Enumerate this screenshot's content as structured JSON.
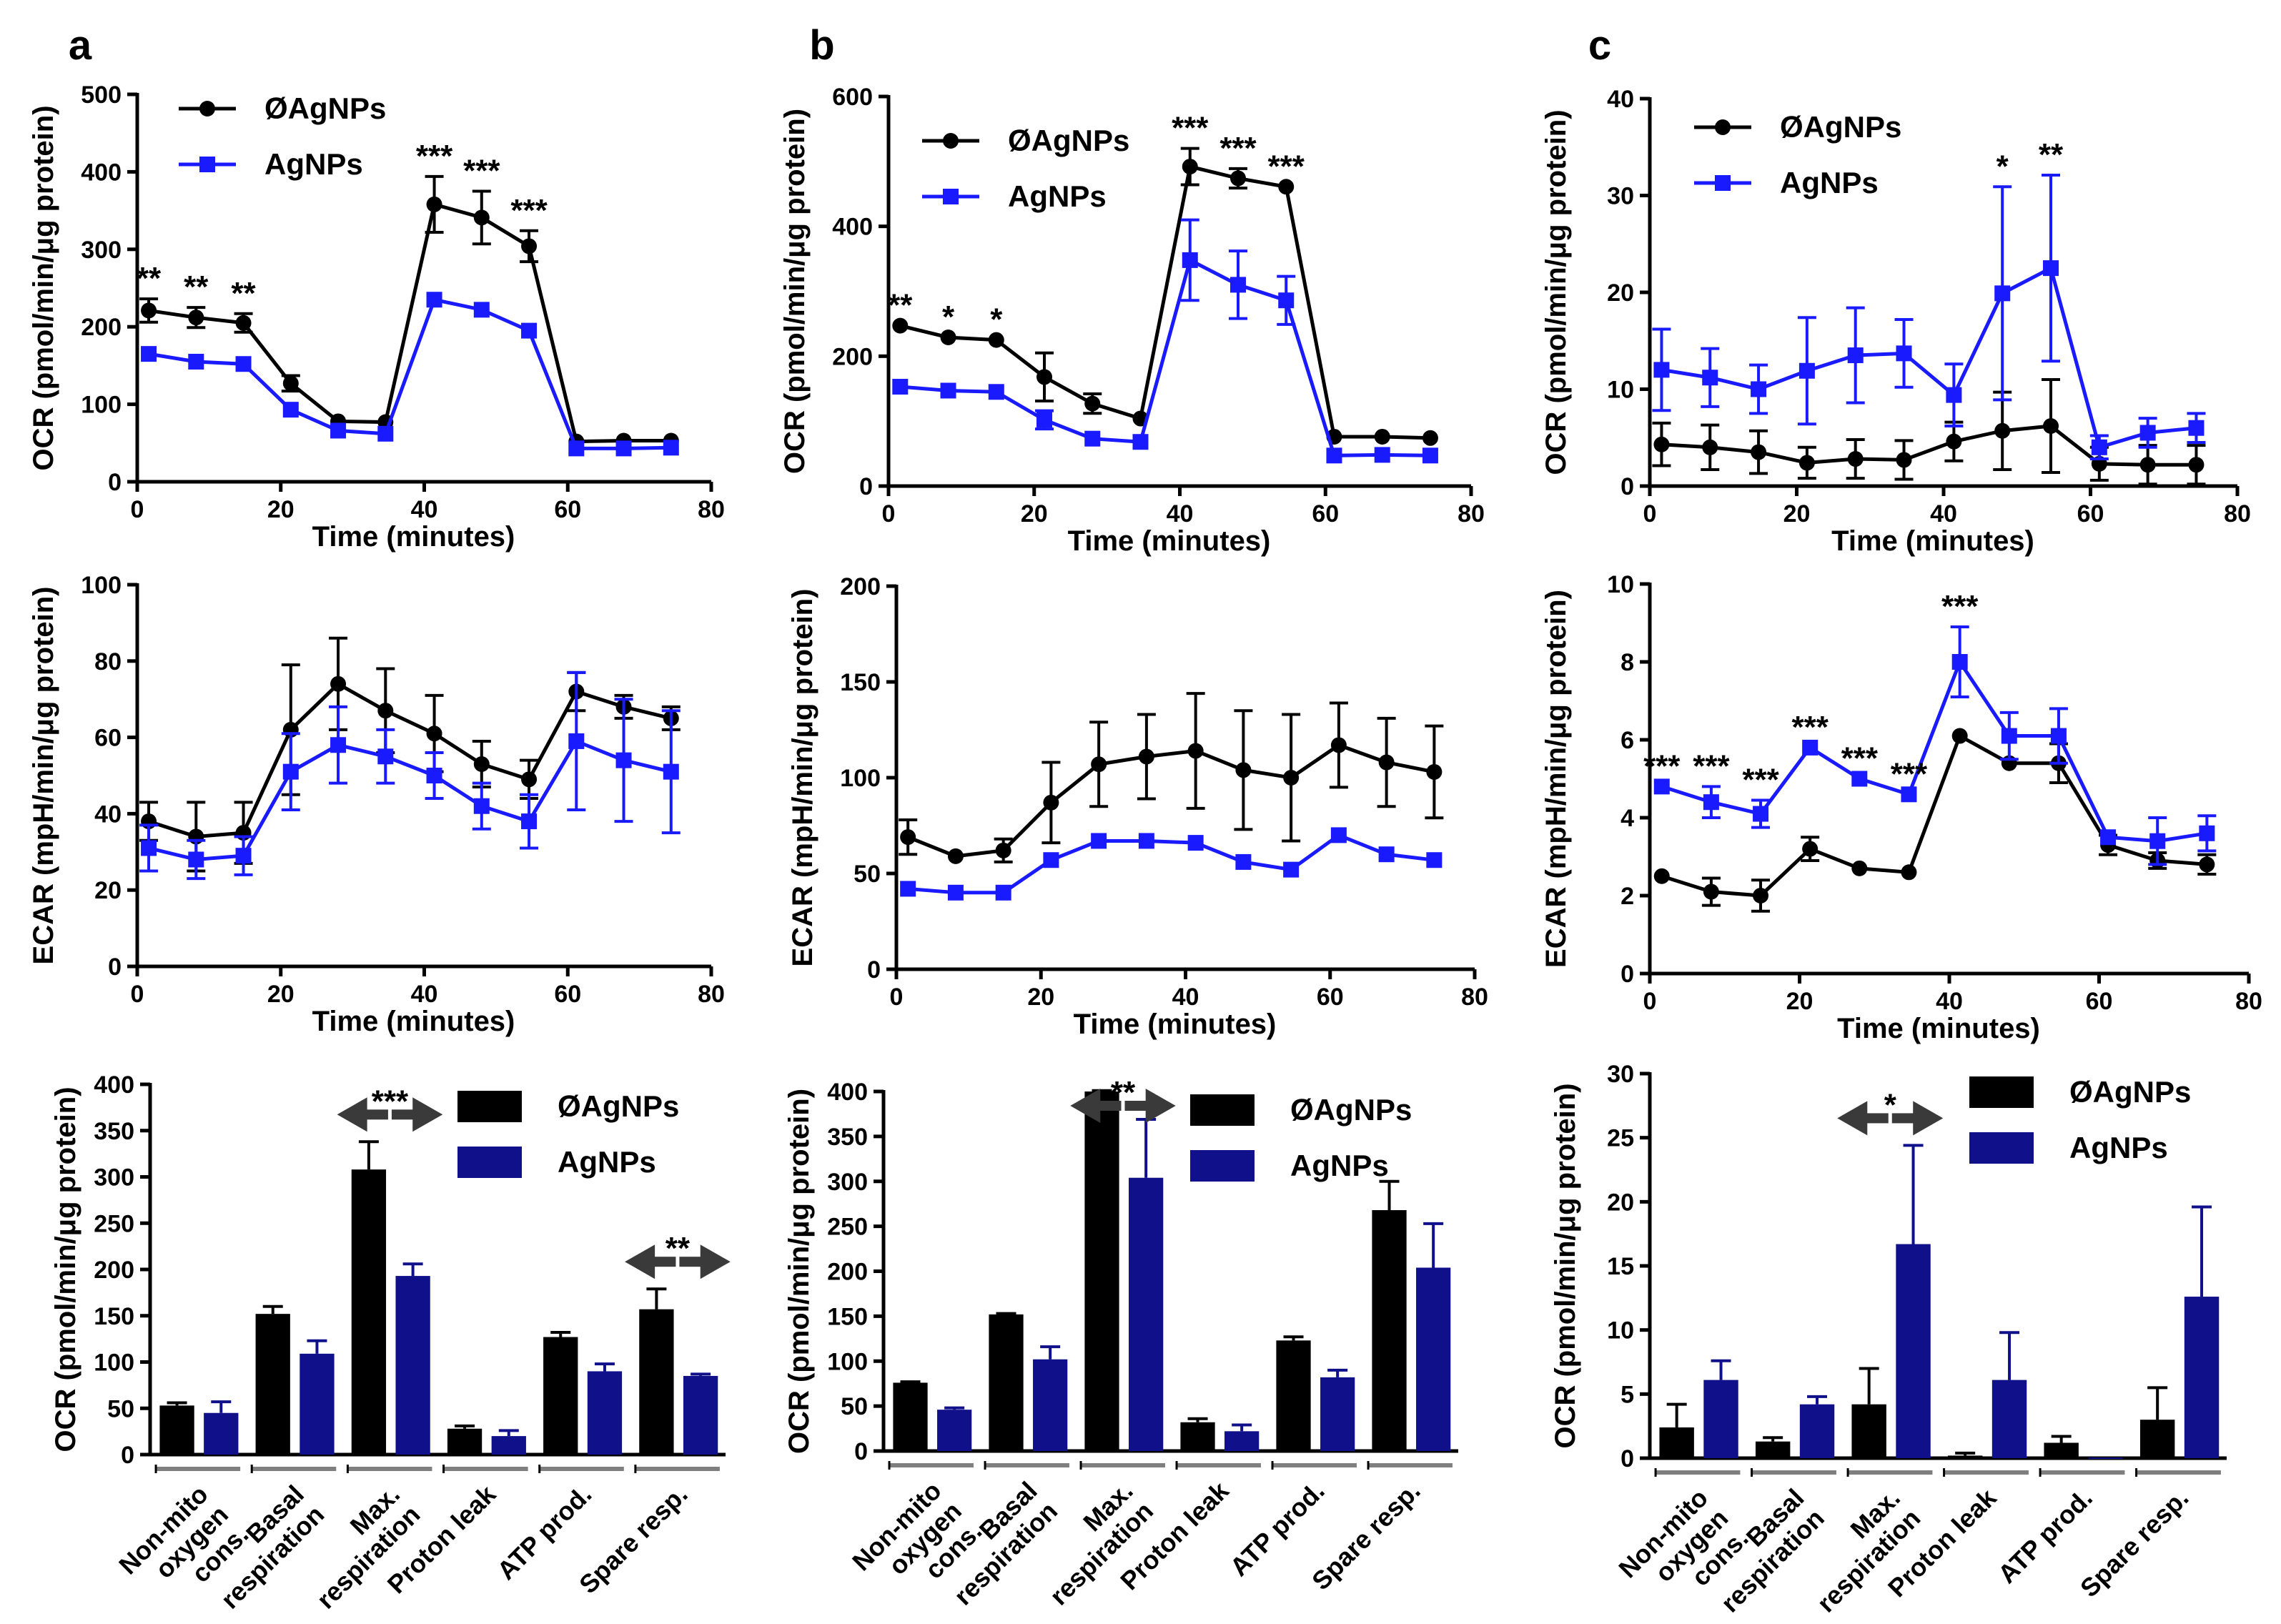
{
  "colors": {
    "control": "#000000",
    "line_agnp": "#1a1aff",
    "bar_agnp": "#10108a",
    "group_bar": "#7f7f7f"
  },
  "chart_data": [
    {
      "id": "a1",
      "type": "line",
      "panel_letter": "a",
      "xlabel": "Time (minutes)",
      "ylabel": "OCR (pmol/min/μg protein)",
      "xlim": [
        0,
        80
      ],
      "ylim": [
        0,
        500
      ],
      "xticks": [
        0,
        20,
        40,
        60,
        80
      ],
      "yticks": [
        0,
        100,
        200,
        300,
        400,
        500
      ],
      "x": [
        1.6,
        8.2,
        14.8,
        21.4,
        28,
        34.6,
        41.4,
        48,
        54.6,
        61.2,
        67.8,
        74.4
      ],
      "series": [
        {
          "name": "ØAgNPs",
          "marker": "circle",
          "values": [
            221,
            212,
            205,
            127,
            78,
            77,
            358,
            341,
            304,
            52,
            53,
            53
          ],
          "errors": [
            15,
            13,
            12,
            10,
            0,
            0,
            36,
            34,
            20,
            0,
            0,
            0
          ]
        },
        {
          "name": "AgNPs",
          "marker": "square",
          "values": [
            165,
            155,
            152,
            93,
            66,
            62,
            235,
            222,
            195,
            43,
            43,
            44
          ],
          "errors": [
            0,
            0,
            0,
            0,
            0,
            0,
            0,
            0,
            0,
            0,
            0,
            0
          ]
        }
      ],
      "annotations": [
        {
          "x": 1.6,
          "text": "**"
        },
        {
          "x": 8.2,
          "text": "**"
        },
        {
          "x": 14.8,
          "text": "**"
        },
        {
          "x": 41.4,
          "text": "***"
        },
        {
          "x": 48,
          "text": "***"
        },
        {
          "x": 54.6,
          "text": "***"
        }
      ]
    },
    {
      "id": "b1",
      "type": "line",
      "panel_letter": "b",
      "xlabel": "Time (minutes)",
      "ylabel": "OCR (pmol/min/μg protein)",
      "xlim": [
        0,
        80
      ],
      "ylim": [
        0,
        600
      ],
      "xticks": [
        0,
        20,
        40,
        60,
        80
      ],
      "yticks": [
        0,
        200,
        400,
        600
      ],
      "x": [
        1.6,
        8.2,
        14.8,
        21.4,
        28,
        34.6,
        41.4,
        48,
        54.6,
        61.2,
        67.8,
        74.4
      ],
      "series": [
        {
          "name": "ØAgNPs",
          "marker": "circle",
          "values": [
            247,
            229,
            225,
            168,
            127,
            104,
            492,
            474,
            461,
            76,
            76,
            74
          ],
          "errors": [
            0,
            0,
            0,
            37,
            15,
            0,
            28,
            15,
            0,
            0,
            0,
            0
          ]
        },
        {
          "name": "AgNPs",
          "marker": "square",
          "values": [
            153,
            147,
            145,
            102,
            73,
            68,
            348,
            310,
            286,
            47,
            48,
            47
          ],
          "errors": [
            0,
            0,
            0,
            14,
            0,
            0,
            62,
            52,
            37,
            0,
            0,
            0
          ]
        }
      ],
      "annotations": [
        {
          "x": 1.6,
          "text": "**"
        },
        {
          "x": 8.2,
          "text": "*"
        },
        {
          "x": 14.8,
          "text": "*"
        },
        {
          "x": 41.4,
          "text": "***"
        },
        {
          "x": 48,
          "text": "***"
        },
        {
          "x": 54.6,
          "text": "***"
        }
      ]
    },
    {
      "id": "c1",
      "type": "line",
      "panel_letter": "c",
      "xlabel": "Time (minutes)",
      "ylabel": "OCR (pmol/min/μg protein)",
      "xlim": [
        0,
        80
      ],
      "ylim": [
        0,
        40
      ],
      "xticks": [
        0,
        20,
        40,
        60,
        80
      ],
      "yticks": [
        0,
        10,
        20,
        30,
        40
      ],
      "x": [
        1.6,
        8.2,
        14.8,
        21.4,
        28,
        34.6,
        41.4,
        48,
        54.6,
        61.2,
        67.8,
        74.4
      ],
      "series": [
        {
          "name": "ØAgNPs",
          "marker": "circle",
          "values": [
            4.3,
            4.0,
            3.5,
            2.4,
            2.8,
            2.7,
            4.6,
            5.7,
            6.2,
            2.3,
            2.2,
            2.2
          ],
          "errors": [
            2.2,
            2.3,
            2.2,
            1.6,
            2.0,
            2.0,
            2.0,
            4.0,
            4.8,
            1.7,
            2.0,
            2.0
          ]
        },
        {
          "name": "AgNPs",
          "marker": "square",
          "values": [
            12.0,
            11.2,
            10.0,
            11.9,
            13.5,
            13.7,
            9.4,
            19.9,
            22.5,
            4.0,
            5.5,
            6.0
          ],
          "errors": [
            4.2,
            3.0,
            2.5,
            5.5,
            4.9,
            3.5,
            3.2,
            11.0,
            9.6,
            1.2,
            1.5,
            1.5
          ]
        }
      ],
      "annotations": [
        {
          "x": 48,
          "text": "*"
        },
        {
          "x": 54.6,
          "text": "**"
        }
      ]
    },
    {
      "id": "a2",
      "type": "line",
      "xlabel": "Time (minutes)",
      "ylabel": "ECAR (mpH/min/μg protein)",
      "xlim": [
        0,
        80
      ],
      "ylim": [
        0,
        100
      ],
      "xticks": [
        0,
        20,
        40,
        60,
        80
      ],
      "yticks": [
        0,
        20,
        40,
        60,
        80,
        100
      ],
      "x": [
        1.6,
        8.2,
        14.8,
        21.4,
        28,
        34.6,
        41.4,
        48,
        54.6,
        61.2,
        67.8,
        74.4
      ],
      "series": [
        {
          "name": "ØAgNPs",
          "marker": "circle",
          "values": [
            38,
            34,
            35,
            62,
            74,
            67,
            61,
            53,
            49,
            72,
            68,
            65
          ],
          "errors": [
            5,
            9,
            8,
            17,
            12,
            11,
            10,
            6,
            5,
            5,
            3,
            3
          ]
        },
        {
          "name": "AgNPs",
          "marker": "square",
          "values": [
            31,
            28,
            29,
            51,
            58,
            55,
            50,
            42,
            38,
            59,
            54,
            51
          ],
          "errors": [
            6,
            5,
            5,
            10,
            10,
            7,
            6,
            6,
            7,
            18,
            16,
            16
          ]
        }
      ],
      "annotations": []
    },
    {
      "id": "b2",
      "type": "line",
      "xlabel": "Time (minutes)",
      "ylabel": "ECAR (mpH/min/μg protein)",
      "xlim": [
        0,
        80
      ],
      "ylim": [
        0,
        200
      ],
      "xticks": [
        0,
        20,
        40,
        60,
        80
      ],
      "yticks": [
        0,
        50,
        100,
        150,
        200
      ],
      "x": [
        1.6,
        8.2,
        14.8,
        21.4,
        28,
        34.6,
        41.4,
        48,
        54.6,
        61.2,
        67.8,
        74.4
      ],
      "series": [
        {
          "name": "ØAgNPs",
          "marker": "circle",
          "values": [
            69,
            59,
            62,
            87,
            107,
            111,
            114,
            104,
            100,
            117,
            108,
            103
          ],
          "errors": [
            9,
            0,
            6,
            21,
            22,
            22,
            30,
            31,
            33,
            22,
            23,
            24
          ]
        },
        {
          "name": "AgNPs",
          "marker": "square",
          "values": [
            42,
            40,
            40,
            57,
            67,
            67,
            66,
            56,
            52,
            70,
            60,
            57
          ],
          "errors": [
            0,
            0,
            0,
            0,
            0,
            0,
            0,
            0,
            0,
            0,
            0,
            0
          ]
        }
      ],
      "annotations": []
    },
    {
      "id": "c2",
      "type": "line",
      "xlabel": "Time (minutes)",
      "ylabel": "ECAR (mpH/min/μg protein)",
      "xlim": [
        0,
        80
      ],
      "ylim": [
        0,
        10
      ],
      "xticks": [
        0,
        20,
        40,
        60,
        80
      ],
      "yticks": [
        0,
        2,
        4,
        6,
        8,
        10
      ],
      "x": [
        1.6,
        8.2,
        14.8,
        21.4,
        28,
        34.6,
        41.4,
        48,
        54.6,
        61.2,
        67.8,
        74.4
      ],
      "series": [
        {
          "name": "ØAgNPs",
          "marker": "circle",
          "values": [
            2.5,
            2.1,
            2.0,
            3.2,
            2.7,
            2.6,
            6.1,
            5.4,
            5.4,
            3.3,
            2.9,
            2.8
          ],
          "errors": [
            0,
            0.35,
            0.4,
            0.3,
            0,
            0,
            0,
            0,
            0.5,
            0.25,
            0.2,
            0.25
          ]
        },
        {
          "name": "AgNPs",
          "marker": "square",
          "values": [
            4.8,
            4.4,
            4.1,
            5.8,
            5.0,
            4.6,
            8.0,
            6.1,
            6.1,
            3.5,
            3.4,
            3.6
          ],
          "errors": [
            0,
            0.4,
            0.35,
            0,
            0,
            0,
            0.9,
            0.6,
            0.7,
            0,
            0.6,
            0.45
          ]
        }
      ],
      "annotations": [
        {
          "x": 1.6,
          "text": "***"
        },
        {
          "x": 8.2,
          "text": "***"
        },
        {
          "x": 14.8,
          "text": "***"
        },
        {
          "x": 21.4,
          "text": "***"
        },
        {
          "x": 28,
          "text": "***"
        },
        {
          "x": 34.6,
          "text": "***"
        },
        {
          "x": 41.4,
          "text": "***"
        }
      ]
    },
    {
      "id": "a3",
      "type": "bar",
      "ylabel": "OCR (pmol/min/μg protein)",
      "ylim": [
        0,
        400
      ],
      "yticks": [
        0,
        50,
        100,
        150,
        200,
        250,
        300,
        350,
        400
      ],
      "categories": [
        "Non-mito|oxygen|cons.",
        "Basal|respiration",
        "Max.|respiration",
        "Proton leak",
        "ATP prod.",
        "Spare resp."
      ],
      "series": [
        {
          "name": "ØAgNPs",
          "values": [
            53,
            152,
            308,
            28,
            127,
            157
          ],
          "errors": [
            3,
            8,
            30,
            3,
            5,
            22
          ]
        },
        {
          "name": "AgNPs",
          "values": [
            45,
            109,
            193,
            20,
            90,
            85
          ],
          "errors": [
            12,
            14,
            13,
            6,
            8,
            2
          ]
        }
      ],
      "significance": [
        {
          "category": 2,
          "text": "***"
        },
        {
          "category": 5,
          "text": "**"
        }
      ]
    },
    {
      "id": "b3",
      "type": "bar",
      "ylabel": "OCR (pmol/min/μg protein)",
      "ylim": [
        0,
        400
      ],
      "yticks": [
        0,
        50,
        100,
        150,
        200,
        250,
        300,
        350,
        400
      ],
      "categories": [
        "Non-mito|oxygen|cons.",
        "Basal|respiration",
        "Max.|respiration",
        "Proton leak",
        "ATP prod.",
        "Spare resp."
      ],
      "series": [
        {
          "name": "ØAgNPs",
          "values": [
            76,
            152,
            400,
            32,
            123,
            268
          ],
          "errors": [
            1,
            1,
            1,
            4,
            4,
            32
          ]
        },
        {
          "name": "AgNPs",
          "values": [
            46,
            102,
            304,
            22,
            82,
            204
          ],
          "errors": [
            2,
            14,
            65,
            7,
            8,
            49
          ]
        }
      ],
      "significance": [
        {
          "category": 2,
          "text": "**"
        }
      ]
    },
    {
      "id": "c3",
      "type": "bar",
      "ylabel": "OCR (pmol/min/μg protein)",
      "ylim": [
        0,
        30
      ],
      "yticks": [
        0,
        5,
        10,
        15,
        20,
        25,
        30
      ],
      "categories": [
        "Non-mito|oxygen|cons.",
        "Basal|respiration",
        "Max.|respiration",
        "Proton leak",
        "ATP prod.",
        "Spare resp."
      ],
      "series": [
        {
          "name": "ØAgNPs",
          "values": [
            2.4,
            1.3,
            4.2,
            0.2,
            1.2,
            3.0
          ],
          "errors": [
            1.8,
            0.3,
            2.8,
            0.2,
            0.5,
            2.5
          ]
        },
        {
          "name": "AgNPs",
          "values": [
            6.1,
            4.2,
            16.7,
            6.1,
            0.05,
            12.6
          ],
          "errors": [
            1.5,
            0.6,
            7.7,
            3.7,
            0,
            7.0
          ]
        }
      ],
      "significance": [
        {
          "category": 2,
          "text": "*"
        }
      ]
    }
  ]
}
